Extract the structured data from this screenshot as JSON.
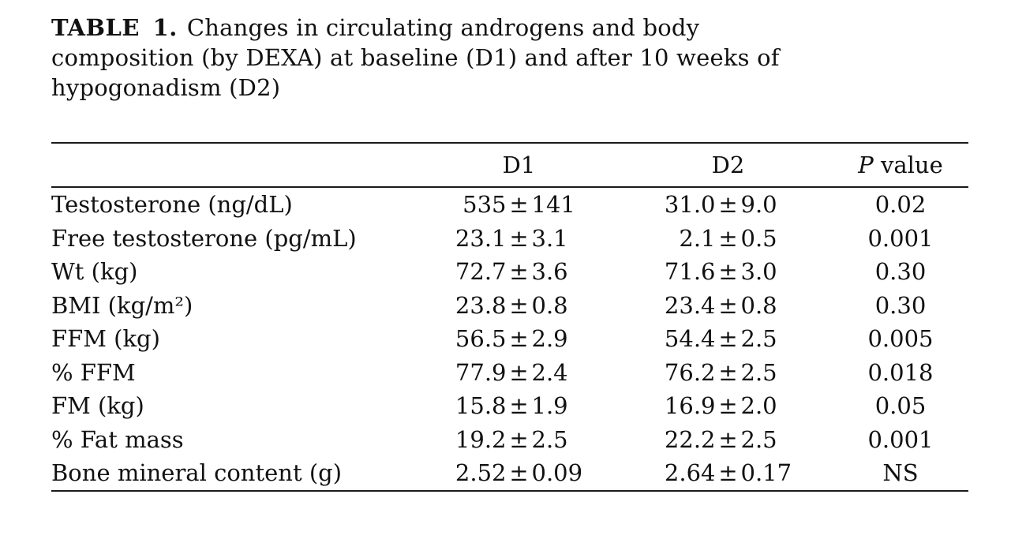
{
  "caption": {
    "label": "TABLE 1.",
    "lines": [
      "Changes in circulating androgens and body",
      "composition (by DEXA) at baseline (D1) and after 10 weeks of",
      "hypogonadism (D2)"
    ]
  },
  "table": {
    "headers": {
      "d1": "D1",
      "d2": "D2",
      "p_symbol": "P",
      "p_text": "value"
    },
    "symbols": {
      "plus_minus": "±"
    },
    "rows": [
      {
        "label": "Testosterone (ng/dL)",
        "d1": {
          "mean": "535",
          "err": "141"
        },
        "d2": {
          "mean": "31.0",
          "err": "9.0"
        },
        "p": "0.02"
      },
      {
        "label": "Free testosterone (pg/mL)",
        "d1": {
          "mean": "23.1",
          "err": "3.1"
        },
        "d2": {
          "mean": "2.1",
          "err": "0.5"
        },
        "p": "0.001"
      },
      {
        "label": "Wt (kg)",
        "d1": {
          "mean": "72.7",
          "err": "3.6"
        },
        "d2": {
          "mean": "71.6",
          "err": "3.0"
        },
        "p": "0.30"
      },
      {
        "label": "BMI (kg/m²)",
        "d1": {
          "mean": "23.8",
          "err": "0.8"
        },
        "d2": {
          "mean": "23.4",
          "err": "0.8"
        },
        "p": "0.30"
      },
      {
        "label": "FFM (kg)",
        "d1": {
          "mean": "56.5",
          "err": "2.9"
        },
        "d2": {
          "mean": "54.4",
          "err": "2.5"
        },
        "p": "0.005"
      },
      {
        "label": "% FFM",
        "d1": {
          "mean": "77.9",
          "err": "2.4"
        },
        "d2": {
          "mean": "76.2",
          "err": "2.5"
        },
        "p": "0.018"
      },
      {
        "label": "FM (kg)",
        "d1": {
          "mean": "15.8",
          "err": "1.9"
        },
        "d2": {
          "mean": "16.9",
          "err": "2.0"
        },
        "p": "0.05"
      },
      {
        "label": "% Fat mass",
        "d1": {
          "mean": "19.2",
          "err": "2.5"
        },
        "d2": {
          "mean": "22.2",
          "err": "2.5"
        },
        "p": "0.001"
      },
      {
        "label": "Bone mineral content (g)",
        "d1": {
          "mean": "2.52",
          "err": "0.09"
        },
        "d2": {
          "mean": "2.64",
          "err": "0.17"
        },
        "p": "NS"
      }
    ]
  }
}
